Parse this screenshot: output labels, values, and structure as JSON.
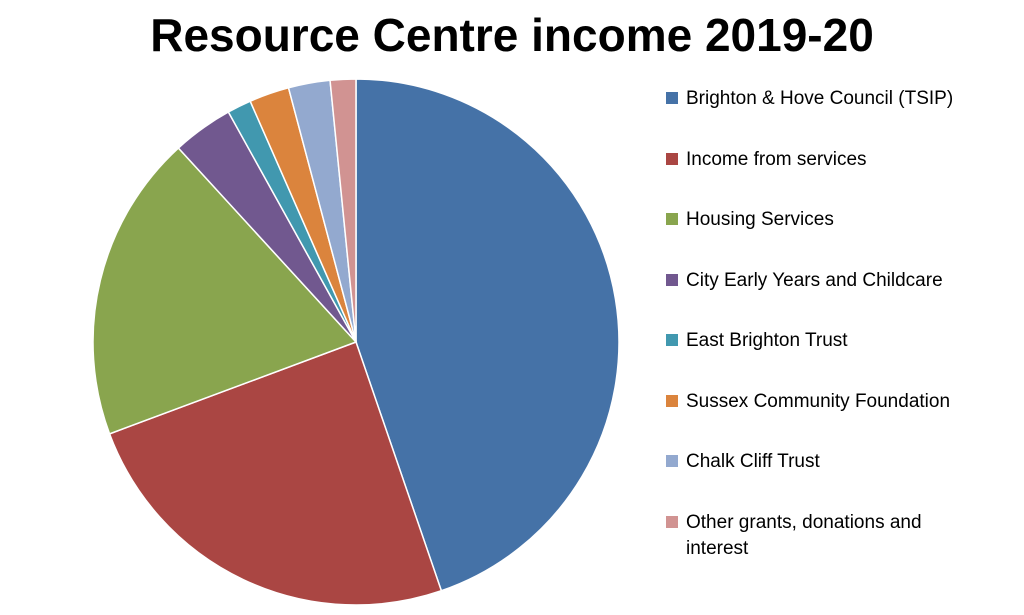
{
  "chart_data": {
    "type": "pie",
    "title": "Resource Centre income 2019-20",
    "slices": [
      {
        "label": "Brighton & Hove Council (TSIP)",
        "value": 45.5,
        "color": "#4572A7"
      },
      {
        "label": "Income from services",
        "value": 25.0,
        "color": "#AA4643"
      },
      {
        "label": "Housing Services",
        "value": 19.2,
        "color": "#89A54E"
      },
      {
        "label": "City Early Years and Childcare",
        "value": 3.8,
        "color": "#71588F"
      },
      {
        "label": "East Brighton Trust",
        "value": 1.5,
        "color": "#4198AF"
      },
      {
        "label": "Sussex Community Foundation",
        "value": 2.5,
        "color": "#DB843D"
      },
      {
        "label": "Chalk Cliff Trust",
        "value": 2.6,
        "color": "#93A9CF"
      },
      {
        "label": "Other grants, donations and interest",
        "value": 1.6,
        "color": "#D19392"
      }
    ],
    "legend_position": "right"
  }
}
